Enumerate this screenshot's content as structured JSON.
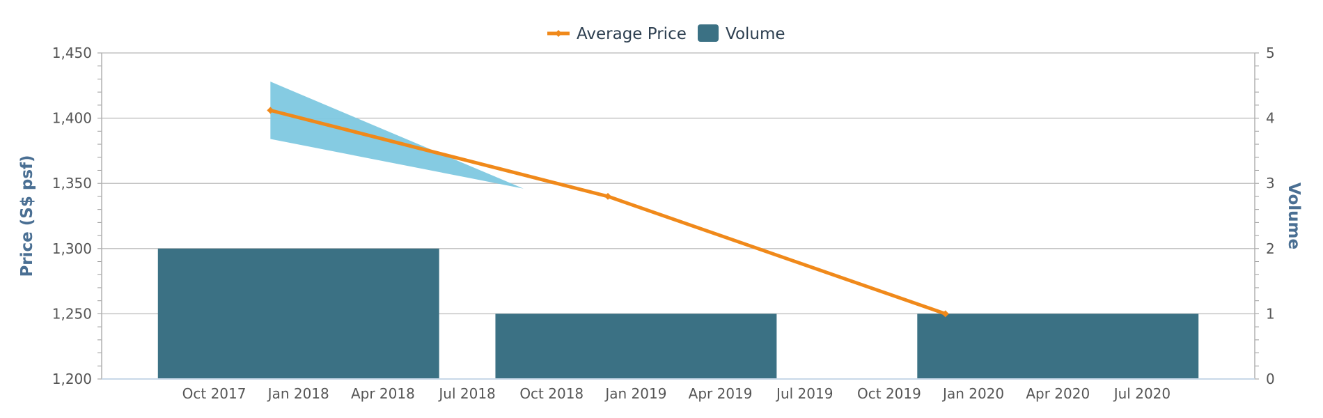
{
  "chart_data": {
    "type": "bar",
    "legend": {
      "position": "top-center",
      "items": [
        {
          "label": "Average Price",
          "color": "#f0891a",
          "symbol": "line"
        },
        {
          "label": "Volume",
          "color": "#3b7184",
          "symbol": "square"
        }
      ]
    },
    "x_axis": {
      "type": "date",
      "ticks": [
        "Oct 2017",
        "Jan 2018",
        "Apr 2018",
        "Jul 2018",
        "Oct 2018",
        "Jan 2019",
        "Apr 2019",
        "Jul 2019",
        "Oct 2019",
        "Jan 2020",
        "Apr 2020",
        "Jul 2020"
      ],
      "range": [
        "2017-06",
        "2020-11"
      ]
    },
    "y_axis_left": {
      "title": "Price (S$ psf)",
      "range": [
        1200,
        1450
      ],
      "ticks": [
        "1,200",
        "1,250",
        "1,300",
        "1,350",
        "1,400",
        "1,450"
      ],
      "grid": true
    },
    "y_axis_right": {
      "title": "Volume",
      "range": [
        0,
        5
      ],
      "ticks": [
        "0",
        "1",
        "2",
        "3",
        "4",
        "5"
      ]
    },
    "series": [
      {
        "name": "Volume",
        "type": "bar",
        "axis": "right",
        "color": "#3b7184",
        "points": [
          {
            "period": "2017-08 to 2018-06",
            "start": "2017-08",
            "end": "2018-06",
            "value": 2
          },
          {
            "period": "2018-08 to 2019-06",
            "start": "2018-08",
            "end": "2019-06",
            "value": 1
          },
          {
            "period": "2019-11 to 2020-09",
            "start": "2019-11",
            "end": "2020-09",
            "value": 1
          }
        ]
      },
      {
        "name": "Average Price",
        "type": "line",
        "axis": "left",
        "color": "#f0891a",
        "points": [
          {
            "date": "2017-12",
            "value": 1406
          },
          {
            "date": "2018-12",
            "value": 1340
          },
          {
            "date": "2019-12",
            "value": 1250
          }
        ]
      },
      {
        "type": "area-range",
        "axis": "left",
        "color": "#7ec8e0",
        "points": [
          {
            "date": "2017-12",
            "low": 1384,
            "high": 1428
          },
          {
            "date": "2018-09",
            "low": 1346,
            "high": 1346
          }
        ]
      }
    ]
  }
}
